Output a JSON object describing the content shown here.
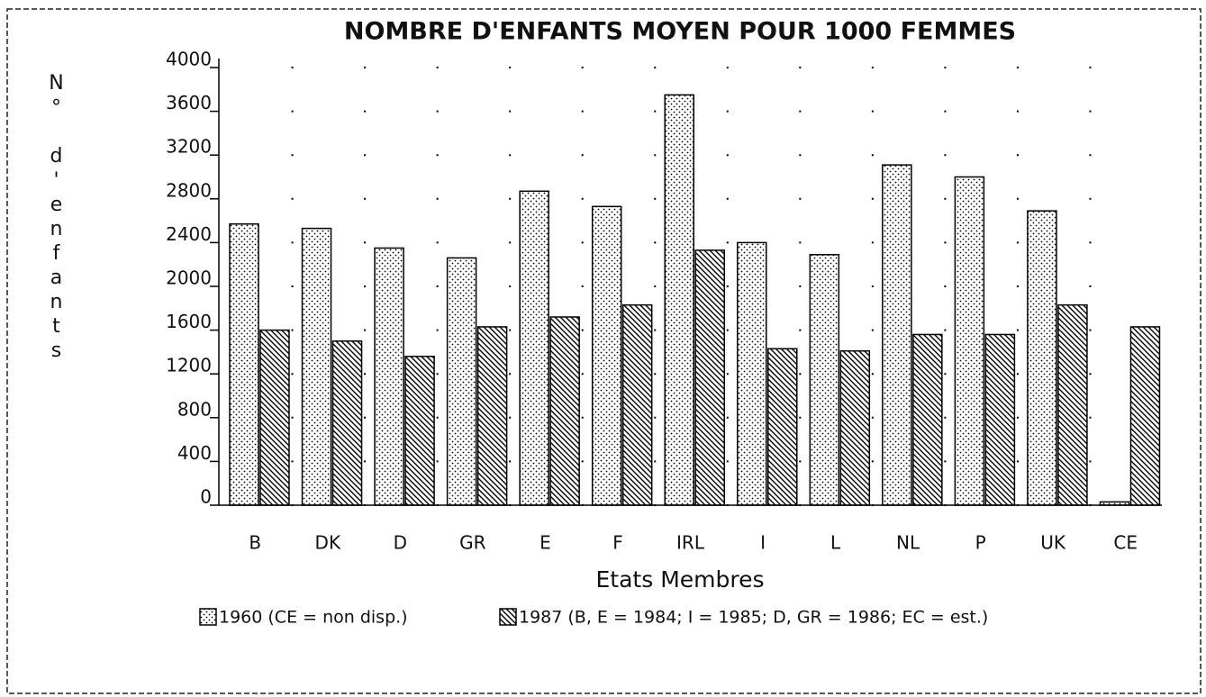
{
  "chart_data": {
    "type": "bar",
    "title": "NOMBRE D'ENFANTS MOYEN POUR 1000 FEMMES",
    "x_label": "Etats Membres",
    "y_label": "N° d'enfants",
    "categories": [
      "B",
      "DK",
      "D",
      "GR",
      "E",
      "F",
      "IRL",
      "I",
      "L",
      "NL",
      "P",
      "UK",
      "CE"
    ],
    "series": [
      {
        "name": "1960 (CE = non disp.)",
        "pattern": "dots",
        "color": "#000000",
        "values": [
          2570,
          2530,
          2350,
          2260,
          2870,
          2730,
          3750,
          2400,
          2290,
          3110,
          3000,
          2690,
          30
        ]
      },
      {
        "name": "1987 (B, E = 1984; I = 1985; D, GR = 1986; EC = est.)",
        "pattern": "hatch",
        "color": "#000000",
        "values": [
          1600,
          1500,
          1360,
          1630,
          1720,
          1830,
          2330,
          1430,
          1410,
          1560,
          1560,
          1830,
          1630
        ]
      }
    ],
    "ylim": [
      0,
      4000
    ],
    "yticks": [
      0,
      400,
      800,
      1200,
      1600,
      2000,
      2400,
      2800,
      3200,
      3600,
      4000
    ],
    "grid": true
  }
}
